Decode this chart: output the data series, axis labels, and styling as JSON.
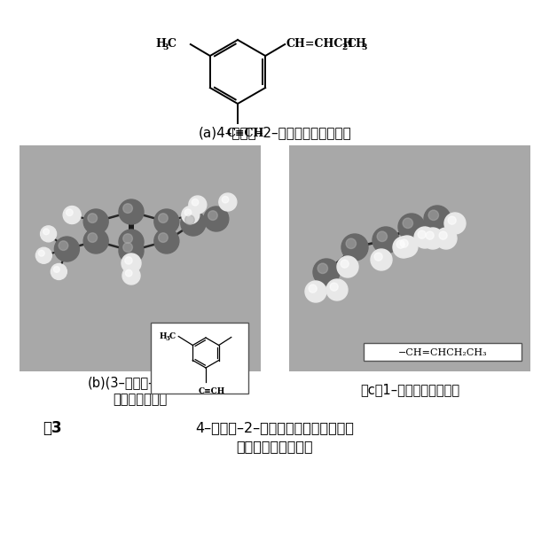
{
  "bg_color": "#ffffff",
  "panel_bg": "#a8a8a8",
  "title_a": "(a)4–丁烯基–2–乙決基甲苯的结构式",
  "label_b1": "(b)(3–乙決基–4–甲基）",
  "label_b2": "苯基的立体构型",
  "label_c": "（c）1–丁烯基的立体构型",
  "caption1": "图3",
  "caption2": "4–丁烯基–2–乙決基甲苯的结构式及其",
  "caption3": "片段结构的立体构型",
  "C_col": "#686868",
  "H_col": "#e8e8e8",
  "bond_col": "#282828"
}
